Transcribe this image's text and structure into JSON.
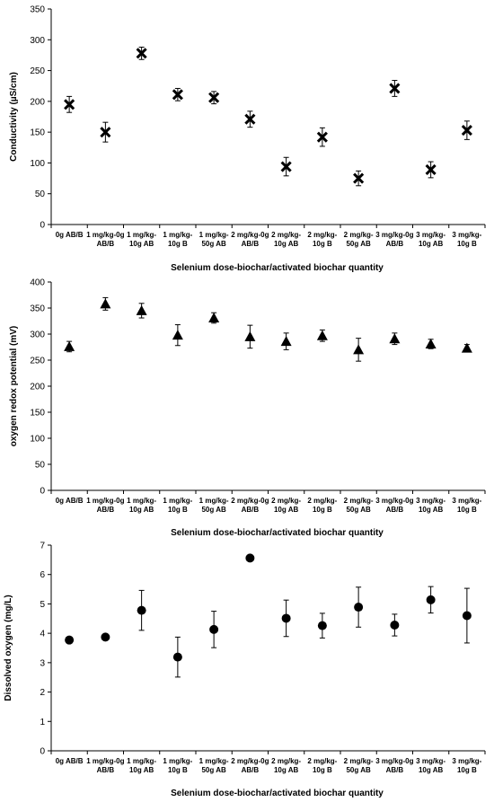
{
  "chart_data": [
    {
      "type": "scatter",
      "title": "",
      "xlabel": "Selenium dose-biochar/activated biochar quantity",
      "ylabel": "Conductivity (µS/cm)",
      "ylim": [
        0,
        350
      ],
      "yticks": [
        0,
        50,
        100,
        150,
        200,
        250,
        300,
        350
      ],
      "marker": "x",
      "categories": [
        [
          "0g AB/B"
        ],
        [
          "1 mg/kg-0g",
          "AB/B"
        ],
        [
          "1 mg/kg-",
          "10g AB"
        ],
        [
          "1 mg/kg-",
          "10g B"
        ],
        [
          "1 mg/kg-",
          "50g AB"
        ],
        [
          "2 mg/kg-0g",
          "AB/B"
        ],
        [
          "2 mg/kg-",
          "10g AB"
        ],
        [
          "2 mg/kg-",
          "10g B"
        ],
        [
          "2 mg/kg-",
          "50g AB"
        ],
        [
          "3 mg/kg-0g",
          "AB/B"
        ],
        [
          "3 mg/kg-",
          "10g AB"
        ],
        [
          "3 mg/kg-",
          "10g B"
        ]
      ],
      "values": [
        195,
        150,
        278,
        211,
        206,
        171,
        94,
        142,
        75,
        221,
        89,
        153
      ],
      "errors": [
        13,
        16,
        10,
        10,
        10,
        13,
        15,
        15,
        12,
        13,
        13,
        15
      ],
      "grid": false
    },
    {
      "type": "scatter",
      "title": "",
      "xlabel": "Selenium dose-biochar/activated biochar quantity",
      "ylabel": "oxygen redox potential (mV)",
      "ylim": [
        0,
        400
      ],
      "yticks": [
        0,
        50,
        100,
        150,
        200,
        250,
        300,
        350,
        400
      ],
      "marker": "triangle",
      "categories": [
        [
          "0g AB/B"
        ],
        [
          "1 mg/kg-0g",
          "AB/B"
        ],
        [
          "1 mg/kg-",
          "10g AB"
        ],
        [
          "1 mg/kg-",
          "10g B"
        ],
        [
          "1 mg/kg-",
          "50g AB"
        ],
        [
          "2 mg/kg-0g",
          "AB/B"
        ],
        [
          "2 mg/kg-",
          "10g AB"
        ],
        [
          "2 mg/kg-",
          "10g B"
        ],
        [
          "2 mg/kg-",
          "50g AB"
        ],
        [
          "3 mg/kg-0g",
          "AB/B"
        ],
        [
          "3 mg/kg-",
          "10g AB"
        ],
        [
          "3 mg/kg-",
          "10g B"
        ]
      ],
      "values": [
        276,
        358,
        345,
        298,
        331,
        295,
        286,
        297,
        270,
        291,
        281,
        273
      ],
      "errors": [
        10,
        12,
        14,
        20,
        10,
        22,
        16,
        11,
        22,
        11,
        9,
        7
      ],
      "grid": false
    },
    {
      "type": "scatter",
      "title": "",
      "xlabel": "Selenium dose-biochar/activated biochar quantity",
      "ylabel": "Dissolved oxygen (mg/L)",
      "ylim": [
        0,
        7
      ],
      "yticks": [
        0,
        1,
        2,
        3,
        4,
        5,
        6,
        7
      ],
      "marker": "circle",
      "categories": [
        [
          "0g AB/B"
        ],
        [
          "1 mg/kg-0g",
          "AB/B"
        ],
        [
          "1 mg/kg-",
          "10g AB"
        ],
        [
          "1 mg/kg-",
          "10g B"
        ],
        [
          "1 mg/kg-",
          "50g AB"
        ],
        [
          "2 mg/kg-0g",
          "AB/B"
        ],
        [
          "2 mg/kg-",
          "10g AB"
        ],
        [
          "2 mg/kg-",
          "10g B"
        ],
        [
          "2 mg/kg-",
          "50g AB"
        ],
        [
          "3 mg/kg-0g",
          "AB/B"
        ],
        [
          "3 mg/kg-",
          "10g AB"
        ],
        [
          "3 mg/kg-",
          "10g B"
        ]
      ],
      "values": [
        3.77,
        3.87,
        4.78,
        3.19,
        4.13,
        6.56,
        4.51,
        4.26,
        4.89,
        4.28,
        5.14,
        4.6
      ],
      "errors": [
        0,
        0,
        0.68,
        0.68,
        0.62,
        0,
        0.62,
        0.42,
        0.68,
        0.37,
        0.45,
        0.93
      ],
      "grid": false
    }
  ]
}
